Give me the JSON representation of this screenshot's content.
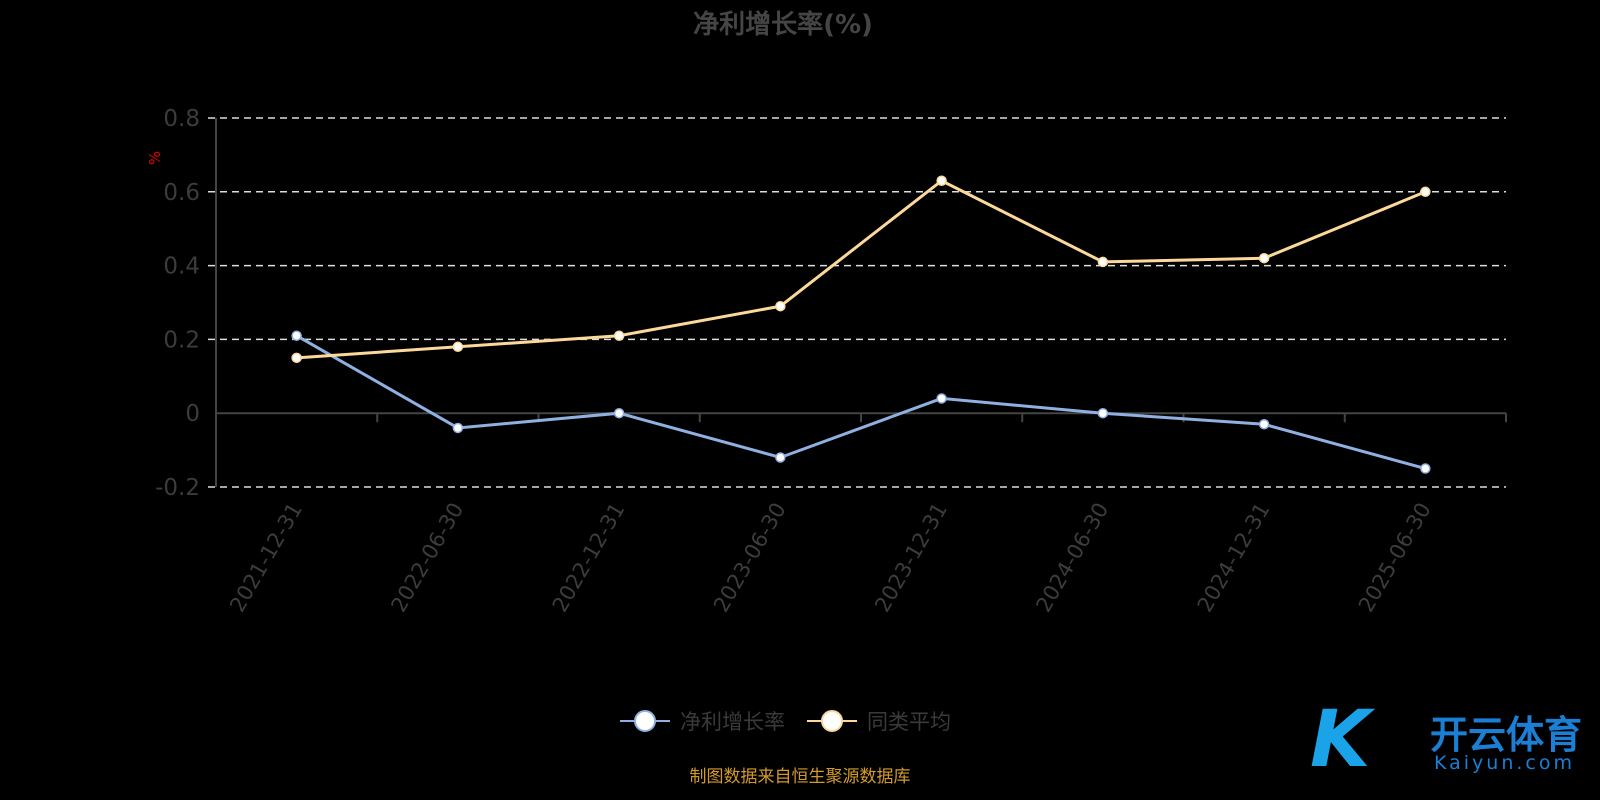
{
  "chart_data": {
    "type": "line",
    "title": "净利增长率(%)",
    "ylabel": "%",
    "xlabel": "",
    "categories": [
      "2021-12-31",
      "2022-06-30",
      "2022-12-31",
      "2023-06-30",
      "2023-12-31",
      "2024-06-30",
      "2024-12-31",
      "2025-06-30"
    ],
    "series": [
      {
        "name": "净利增长率",
        "color": "#8fb0e0",
        "values": [
          0.21,
          -0.04,
          0,
          -0.12,
          0.04,
          0,
          -0.03,
          -0.15
        ]
      },
      {
        "name": "同类平均",
        "color": "#fcd99a",
        "values": [
          0.15,
          0.18,
          0.21,
          0.29,
          0.63,
          0.41,
          0.42,
          0.6
        ]
      }
    ],
    "ylim": [
      -0.2,
      0.8
    ],
    "yticks": [
      "-0.2",
      "0",
      "0.2",
      "0.4",
      "0.6",
      "0.8"
    ],
    "grid": true,
    "legend_position": "bottom"
  },
  "source": "制图数据来自恒生聚源数据库",
  "watermark": {
    "cn": "开云体育",
    "en": "Kaiyun.com"
  }
}
